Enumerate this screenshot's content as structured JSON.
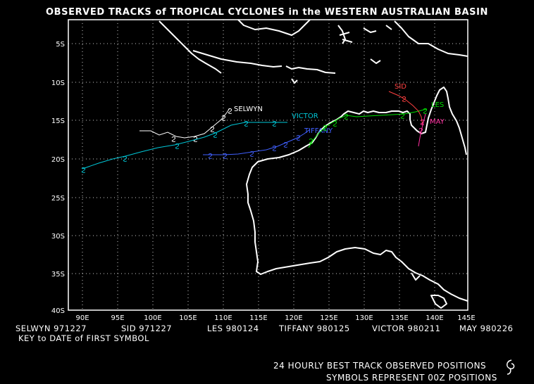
{
  "title": "OBSERVED TRACKS of TROPICAL CYCLONES in the WESTERN AUSTRALIAN BASIN",
  "lat_labels": [
    "5S",
    "10S",
    "15S",
    "20S",
    "25S",
    "30S",
    "35S",
    "40S"
  ],
  "lon_labels": [
    "90E",
    "95E",
    "100E",
    "105E",
    "110E",
    "115E",
    "120E",
    "125E",
    "130E",
    "135E",
    "140E",
    "145E"
  ],
  "cyclones": [
    {
      "name": "SELWYN",
      "first_date": "SELWYN 971227",
      "color": "#ffffff"
    },
    {
      "name": "SID",
      "first_date": "SID 971227",
      "color": "#ff4040"
    },
    {
      "name": "LES",
      "first_date": "LES 980124",
      "color": "#00e000"
    },
    {
      "name": "TIFFANY",
      "first_date": "TIFFANY 980125",
      "color": "#4060ff"
    },
    {
      "name": "VICTOR",
      "first_date": "VICTOR 980211",
      "color": "#00c8d8"
    },
    {
      "name": "MAY",
      "first_date": "MAY 980226",
      "color": "#ff30a0"
    }
  ],
  "key_note": "KEY to DATE of FIRST SYMBOL",
  "legend_line1": "24 HOURLY BEST TRACK OBSERVED POSITIONS",
  "legend_line2": "SYMBOLS REPRESENT 00Z POSITIONS",
  "legend_icon": "cyclone-symbol-icon"
}
